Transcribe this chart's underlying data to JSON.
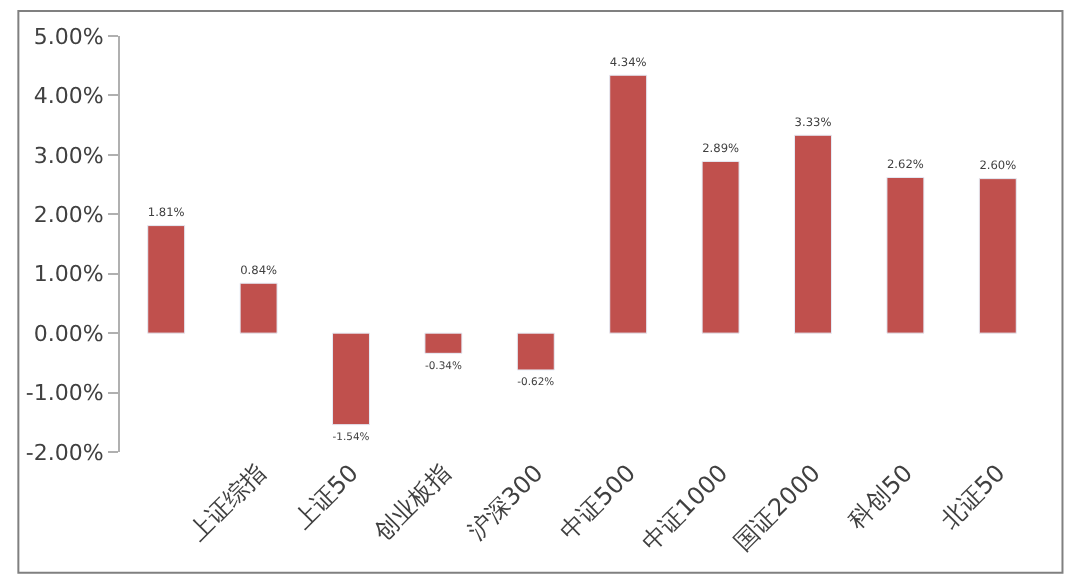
{
  "chart_data": {
    "type": "bar",
    "categories": [
      null,
      "上证综指",
      "上证50",
      "创业板指",
      "沪深300",
      "中证500",
      "中证1000",
      "国证2000",
      "科创50",
      "北证50"
    ],
    "values": [
      1.81,
      0.84,
      -1.54,
      -0.34,
      -0.62,
      4.34,
      2.89,
      3.33,
      2.62,
      2.6
    ],
    "value_labels": [
      "1.81%",
      "0.84%",
      "-1.54%",
      "-0.34%",
      "-0.62%",
      "4.34%",
      "2.89%",
      "3.33%",
      "2.62%",
      "2.60%"
    ],
    "color": "#c0504d",
    "ylim": [
      -2,
      5
    ],
    "yticks": [
      {
        "value": -2,
        "label": "-2.00%"
      },
      {
        "value": -1,
        "label": "-1.00%"
      },
      {
        "value": 0,
        "label": "0.00%"
      },
      {
        "value": 1,
        "label": "1.00%"
      },
      {
        "value": 2,
        "label": "2.00%"
      },
      {
        "value": 3,
        "label": "3.00%"
      },
      {
        "value": 4,
        "label": "4.00%"
      },
      {
        "value": 5,
        "label": "5.00%"
      }
    ],
    "legend": false
  }
}
